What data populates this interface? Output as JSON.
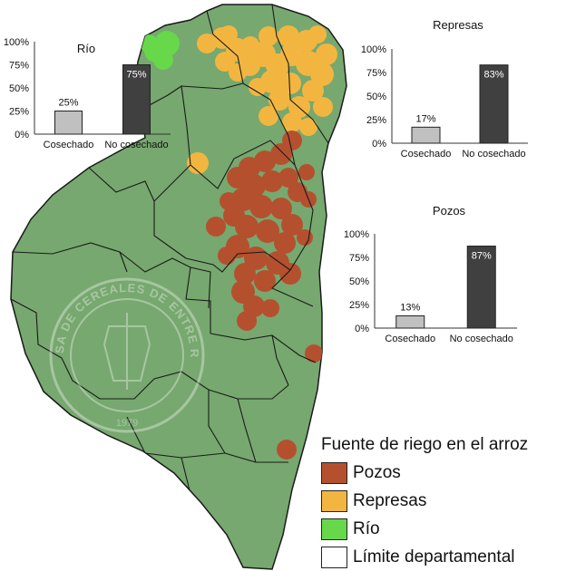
{
  "map": {
    "watermark_text": "BOLSA DE CEREALES DE ENTRE RIOS",
    "watermark_year": "1979",
    "colors": {
      "land": "#77a86f",
      "pozos": "#b5502f",
      "represas": "#f2b640",
      "rio": "#66d84a",
      "border": "#1a1a1a"
    }
  },
  "charts": [
    {
      "id": "rio",
      "title": "Río",
      "chart_data": {
        "type": "bar",
        "categories": [
          "Cosechado",
          "No cosechado"
        ],
        "values": [
          25,
          75
        ],
        "labels": [
          "25%",
          "75%"
        ],
        "ylim": [
          0,
          100
        ],
        "yticks": [
          "0%",
          "25%",
          "50%",
          "75%",
          "100%"
        ],
        "colors": [
          "#c0c0c0",
          "#404040"
        ]
      }
    },
    {
      "id": "represas",
      "title": "Represas",
      "chart_data": {
        "type": "bar",
        "categories": [
          "Cosechado",
          "No cosechado"
        ],
        "values": [
          17,
          83
        ],
        "labels": [
          "17%",
          "83%"
        ],
        "ylim": [
          0,
          100
        ],
        "yticks": [
          "0%",
          "25%",
          "50%",
          "75%",
          "100%"
        ],
        "colors": [
          "#c0c0c0",
          "#404040"
        ]
      }
    },
    {
      "id": "pozos",
      "title": "Pozos",
      "chart_data": {
        "type": "bar",
        "categories": [
          "Cosechado",
          "No cosechado"
        ],
        "values": [
          13,
          87
        ],
        "labels": [
          "13%",
          "87%"
        ],
        "ylim": [
          0,
          100
        ],
        "yticks": [
          "0%",
          "25%",
          "50%",
          "75%",
          "100%"
        ],
        "colors": [
          "#c0c0c0",
          "#404040"
        ]
      }
    }
  ],
  "legend": {
    "title": "Fuente de riego en el arroz",
    "items": [
      {
        "label": "Pozos",
        "color": "#b5502f"
      },
      {
        "label": "Represas",
        "color": "#f2b640"
      },
      {
        "label": "Río",
        "color": "#66d84a"
      },
      {
        "label": "Límite departamental",
        "color": "#ffffff"
      }
    ]
  }
}
